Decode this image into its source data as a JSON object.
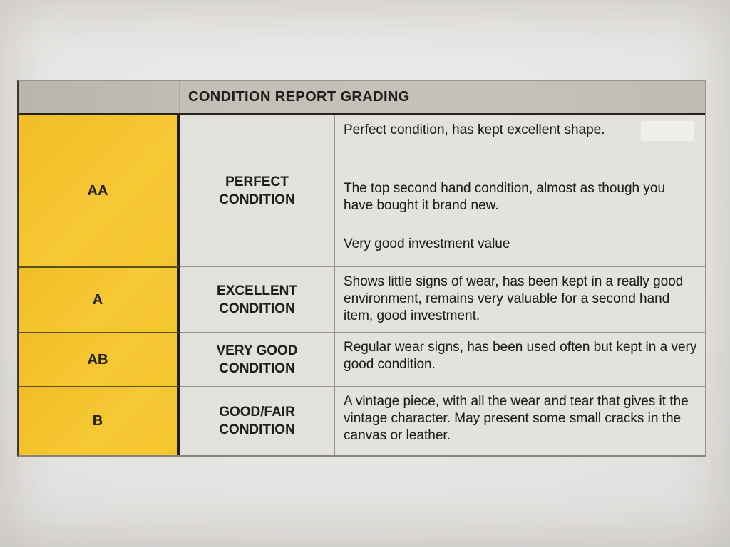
{
  "table": {
    "header_title": "CONDITION REPORT GRADING",
    "rows": [
      {
        "grade": "AA",
        "condition_name": "PERFECT CONDITION",
        "description": [
          "Perfect condition, has kept excellent shape.",
          "The top second hand condition, almost as though you have bought it brand new.",
          "Very good investment value"
        ]
      },
      {
        "grade": "A",
        "condition_name": "EXCELLENT CONDITION",
        "description": [
          "Shows little signs of wear, has been kept in a really good environment, remains very valuable for a second hand item, good investment."
        ]
      },
      {
        "grade": "AB",
        "condition_name": "VERY GOOD CONDITION",
        "description": [
          "Regular wear signs, has been used often but kept in a very good condition."
        ]
      },
      {
        "grade": "B",
        "condition_name": "GOOD/FAIR CONDITION",
        "description": [
          "A vintage piece, with all the wear and tear that gives it the vintage character. May present some small cracks in the canvas or leather."
        ]
      }
    ],
    "colors": {
      "grade_column_yellow": "#F4C730",
      "header_gray": "#C2BEB6",
      "cell_gray": "#E3E1DC",
      "paper": "#E8E6E4",
      "border_dark": "#26231D",
      "border_light": "#9A958C",
      "text": "#1F1E1C"
    }
  }
}
